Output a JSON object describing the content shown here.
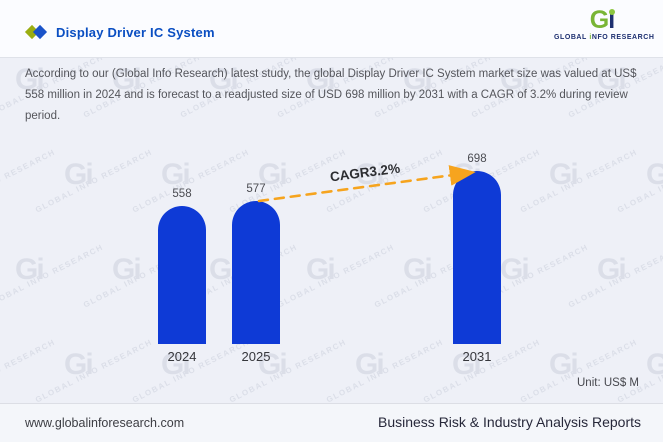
{
  "header": {
    "title": "Display Driver IC System",
    "logo": {
      "mark_g": "G",
      "mark_i": "i",
      "caption_parts": [
        "GLOBAL",
        "iNFO",
        "RESEARCH"
      ]
    }
  },
  "description": "According to our (Global Info Research) latest study, the global Display Driver IC System market size was valued at US$ 558 million in 2024 and is forecast to a readjusted size of USD 698 million by 2031 with a CAGR of 3.2% during review period.",
  "chart_data": {
    "type": "bar",
    "categories": [
      "2024",
      "2025",
      "2031"
    ],
    "values": [
      558,
      577,
      698
    ],
    "unit_label": "Unit: US$ M",
    "annotation": "CAGR3.2%",
    "ylim": [
      0,
      720
    ],
    "grid": false,
    "legend": false,
    "bar_color": "#0e3ad6",
    "arrow_color": "#f6a41e",
    "value_label_color": "#4b4c52"
  },
  "watermark": {
    "mark": "Gi",
    "text": "GLOBAL INFO RESEARCH",
    "color": "#ccd1dd"
  },
  "footer": {
    "website": "www.globalinforesearch.com",
    "tagline": "Business Risk & Industry Analysis Reports"
  },
  "colors": {
    "title_blue": "#0a4ec2",
    "logo_green": "#79b535",
    "logo_navy": "#1d2f70",
    "diamond_green": "#9aad12",
    "diamond_blue": "#1a53c9",
    "background": "#eef0f7"
  }
}
